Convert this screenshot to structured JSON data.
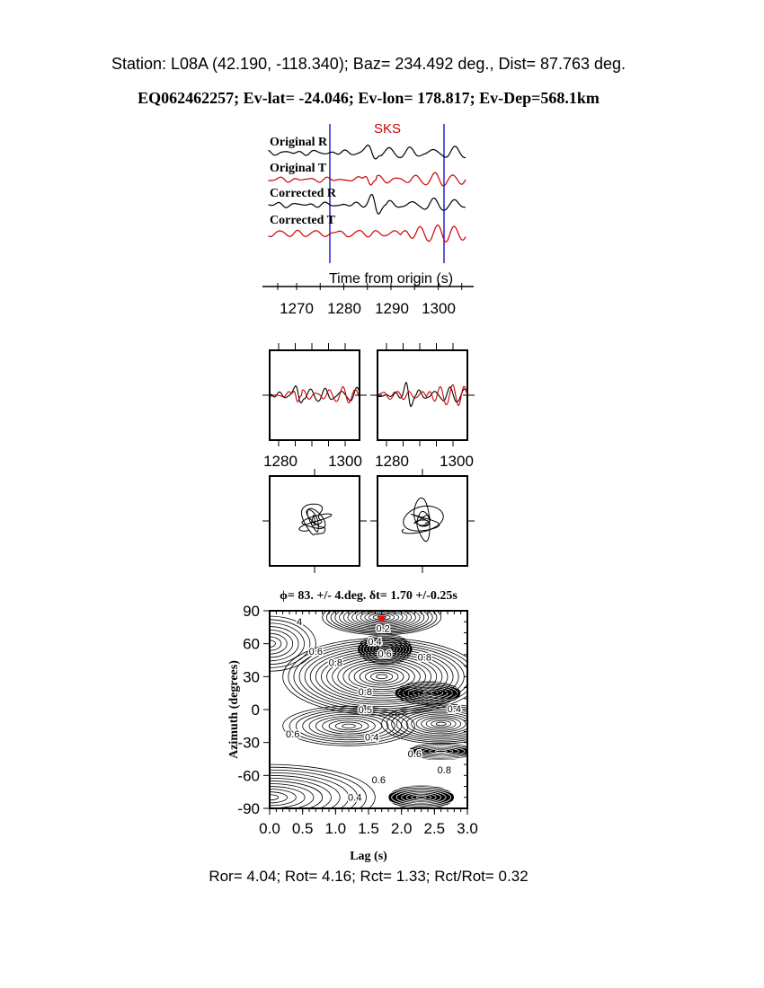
{
  "header": {
    "station_line": "Station: L08A (42.190, -118.340); Baz=  234.492 deg., Dist=   87.763 deg.",
    "event_line": "EQ062462257; Ev-lat= -24.046; Ev-lon= 178.817; Ev-Dep=568.1km"
  },
  "colors": {
    "original": "#000000",
    "transverse": "#cc0000",
    "window": "#0000cc",
    "best_fit": "#ff0000"
  },
  "chart_data": [
    {
      "type": "line",
      "phase_label": "SKS",
      "trace_labels": [
        "Original R",
        "Original T",
        "Corrected R",
        "Corrected T"
      ],
      "xlabel": "Time from origin (s)",
      "xticks": [
        "1270",
        "1280",
        "1290",
        "1300"
      ],
      "xlim": [
        1264,
        1306
      ],
      "window": [
        1277,
        1301
      ]
    },
    {
      "type": "line",
      "panels": [
        "before-correction",
        "after-correction"
      ],
      "xticks_left": [
        "1280",
        "1300"
      ],
      "xticks_right": [
        "1280",
        "1300"
      ],
      "xlim": [
        1277,
        1304
      ]
    },
    {
      "type": "scatter",
      "description_panels": [
        "particle-motion-before",
        "particle-motion-after"
      ]
    },
    {
      "type": "heatmap",
      "title": "ϕ= 83. +/- 4.deg. δt= 1.70 +/-0.25s",
      "xlabel": "Lag (s)",
      "ylabel": "Azimuth (degrees)",
      "xlim": [
        0,
        3
      ],
      "ylim": [
        -90,
        90
      ],
      "xticks": [
        "0.0",
        "0.5",
        "1.0",
        "1.5",
        "2.0",
        "2.5",
        "3.0"
      ],
      "yticks": [
        "90",
        "60",
        "30",
        "0",
        "-30",
        "-60",
        "-90"
      ],
      "best_fit": {
        "lag": 1.7,
        "azimuth": 83
      },
      "contour_labels": [
        {
          "text": "4",
          "lag": 0.45,
          "azimuth": 80
        },
        {
          "text": "0.2",
          "lag": 1.72,
          "azimuth": 70
        },
        {
          "text": "0.4",
          "lag": 1.65,
          "azimuth": 62
        },
        {
          "text": "0.6",
          "lag": 1.72,
          "azimuth": 56
        },
        {
          "text": "0.8",
          "lag": 2.35,
          "azimuth": 48
        },
        {
          "text": "0.6",
          "lag": 0.7,
          "azimuth": 53
        },
        {
          "text": "0.8",
          "lag": 1.0,
          "azimuth": 43
        },
        {
          "text": "0.8",
          "lag": 1.45,
          "azimuth": 13
        },
        {
          "text": "0.5",
          "lag": 1.45,
          "azimuth": 4
        },
        {
          "text": "0.4",
          "lag": 2.8,
          "azimuth": 1
        },
        {
          "text": "0.6",
          "lag": 0.35,
          "azimuth": -22
        },
        {
          "text": "0.4",
          "lag": 1.55,
          "azimuth": -25
        },
        {
          "text": "0.6",
          "lag": 2.2,
          "azimuth": -40
        },
        {
          "text": "0.8",
          "lag": 2.65,
          "azimuth": -55
        },
        {
          "text": "0.6",
          "lag": 1.6,
          "azimuth": -67
        },
        {
          "text": "0.4",
          "lag": 1.4,
          "azimuth": -75
        }
      ]
    }
  ],
  "footer": {
    "ratios_line": "Ror= 4.04; Rot= 4.16; Rct= 1.33; Rct/Rot= 0.32"
  }
}
